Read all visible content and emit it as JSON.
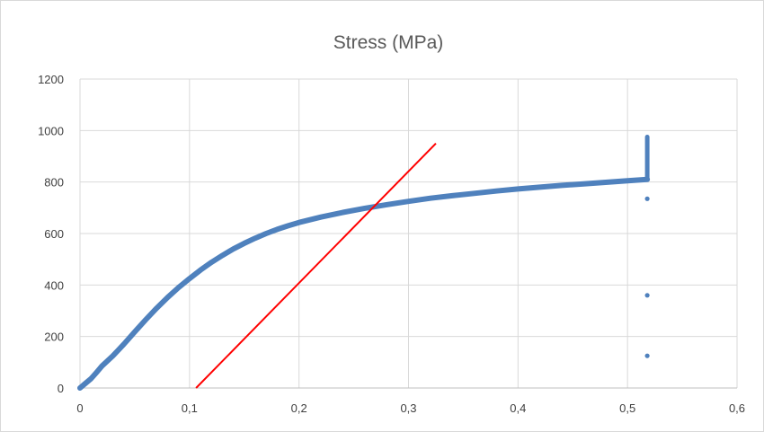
{
  "chart_data": {
    "type": "scatter",
    "title": "Stress (MPa)",
    "xlabel": "",
    "ylabel": "",
    "xlim": [
      0,
      0.6
    ],
    "ylim": [
      0,
      1200
    ],
    "x_ticks": [
      0,
      0.1,
      0.2,
      0.3,
      0.4,
      0.5,
      0.6
    ],
    "x_tick_labels": [
      "0",
      "0,1",
      "0,2",
      "0,3",
      "0,4",
      "0,5",
      "0,6"
    ],
    "y_ticks": [
      0,
      200,
      400,
      600,
      800,
      1000,
      1200
    ],
    "y_tick_labels": [
      "0",
      "200",
      "400",
      "600",
      "800",
      "1000",
      "1200"
    ],
    "grid": true,
    "legend": "none",
    "series": [
      {
        "color": "#4f81bd",
        "kind": "curve",
        "points": [
          [
            0,
            0
          ],
          [
            0.005,
            18
          ],
          [
            0.01,
            36
          ],
          [
            0.015,
            60
          ],
          [
            0.02,
            85
          ],
          [
            0.03,
            125
          ],
          [
            0.04,
            170
          ],
          [
            0.05,
            218
          ],
          [
            0.06,
            265
          ],
          [
            0.07,
            310
          ],
          [
            0.08,
            352
          ],
          [
            0.09,
            390
          ],
          [
            0.1,
            425
          ],
          [
            0.11,
            458
          ],
          [
            0.12,
            488
          ],
          [
            0.13,
            515
          ],
          [
            0.14,
            540
          ],
          [
            0.15,
            562
          ],
          [
            0.16,
            582
          ],
          [
            0.17,
            600
          ],
          [
            0.18,
            616
          ],
          [
            0.19,
            630
          ],
          [
            0.2,
            643
          ],
          [
            0.22,
            664
          ],
          [
            0.24,
            682
          ],
          [
            0.26,
            698
          ],
          [
            0.28,
            712
          ],
          [
            0.3,
            725
          ],
          [
            0.32,
            737
          ],
          [
            0.34,
            747
          ],
          [
            0.36,
            756
          ],
          [
            0.38,
            765
          ],
          [
            0.4,
            773
          ],
          [
            0.42,
            780
          ],
          [
            0.44,
            787
          ],
          [
            0.46,
            793
          ],
          [
            0.48,
            799
          ],
          [
            0.5,
            805
          ],
          [
            0.518,
            810
          ]
        ]
      },
      {
        "color": "#4f81bd",
        "kind": "vertical-segment",
        "points": [
          [
            0.518,
            810
          ],
          [
            0.518,
            975
          ]
        ]
      },
      {
        "color": "#4f81bd",
        "kind": "markers",
        "points": [
          [
            0.518,
            735
          ],
          [
            0.518,
            360
          ],
          [
            0.518,
            125
          ]
        ]
      },
      {
        "color": "#ff0000",
        "kind": "line",
        "points": [
          [
            0.106,
            0
          ],
          [
            0.325,
            950
          ]
        ]
      }
    ]
  }
}
